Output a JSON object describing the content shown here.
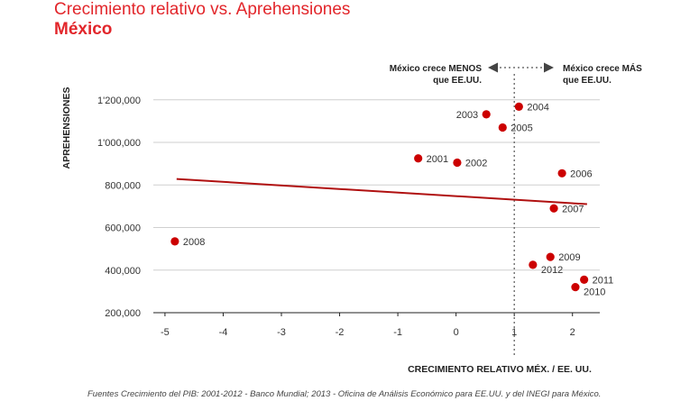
{
  "title": "Crecimiento relativo vs. Aprehensiones",
  "subtitle": "México",
  "source": "Fuentes Crecimiento del PIB: 2001-2012 - Banco Mundial; 2013 - Oficina de Análisis Económico para EE.UU. y del INEGI para México.",
  "colors": {
    "accent": "#e2262b",
    "point": "#cc0000",
    "trend": "#b01010",
    "grid": "#cfcfcf"
  },
  "chart_data": {
    "type": "scatter",
    "xlabel": "CRECIMIENTO RELATIVO MÉX. / EE. UU.",
    "ylabel": "APREHENSIONES",
    "xlim": [
      -5.2,
      2.5
    ],
    "ylim": [
      200000,
      1250000
    ],
    "xticks": [
      -5,
      -4,
      -3,
      -2,
      -1,
      0,
      1,
      2
    ],
    "xtick_labels": [
      "-5",
      "-4",
      "-3",
      "-2",
      "-1",
      "0",
      "1",
      "2"
    ],
    "yticks": [
      200000,
      400000,
      600000,
      800000,
      1000000,
      1200000
    ],
    "ytick_labels": [
      "200,000",
      "400,000",
      "600,000",
      "800,000",
      "1'000,000",
      "1'200,000"
    ],
    "grid": "horizontal",
    "points": [
      {
        "label": "2001",
        "x": -0.65,
        "y": 925000
      },
      {
        "label": "2002",
        "x": 0.02,
        "y": 905000
      },
      {
        "label": "2003",
        "x": 0.52,
        "y": 1132000
      },
      {
        "label": "2004",
        "x": 1.08,
        "y": 1168000
      },
      {
        "label": "2005",
        "x": 0.8,
        "y": 1070000
      },
      {
        "label": "2006",
        "x": 1.82,
        "y": 855000
      },
      {
        "label": "2007",
        "x": 1.68,
        "y": 690000
      },
      {
        "label": "2008",
        "x": -4.83,
        "y": 535000
      },
      {
        "label": "2009",
        "x": 1.62,
        "y": 462000
      },
      {
        "label": "2010",
        "x": 2.05,
        "y": 320000
      },
      {
        "label": "2011",
        "x": 2.2,
        "y": 355000
      },
      {
        "label": "2012",
        "x": 1.32,
        "y": 425000
      }
    ],
    "trendline": {
      "x": [
        -4.8,
        2.25
      ],
      "y": [
        828000,
        710000
      ]
    },
    "reference_line": {
      "x": 1.0
    },
    "annotations": {
      "left": [
        "México crece MENOS",
        "que EE.UU."
      ],
      "right": [
        "México crece MÁS",
        "que EE.UU."
      ]
    }
  }
}
